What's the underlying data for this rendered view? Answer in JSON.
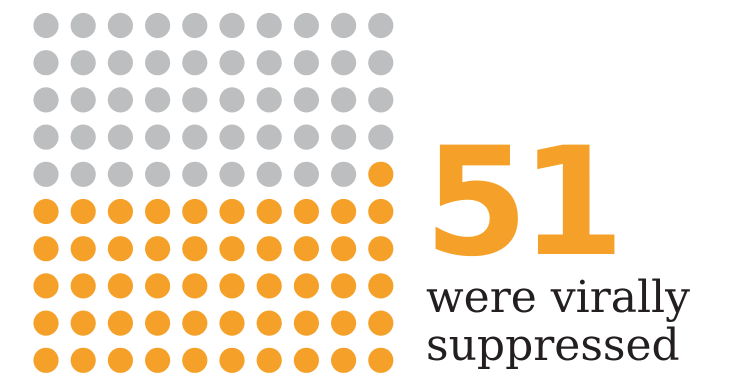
{
  "chart_data": {
    "type": "waffle",
    "total": 100,
    "columns": 10,
    "rows": 10,
    "highlighted_count": 51,
    "highlight_color": "#f5a129",
    "base_color": "#bcbec0",
    "fill_order": "bottom-up, right-to-left",
    "big_number": "51",
    "caption_lines": [
      "were virally",
      "suppressed"
    ]
  }
}
